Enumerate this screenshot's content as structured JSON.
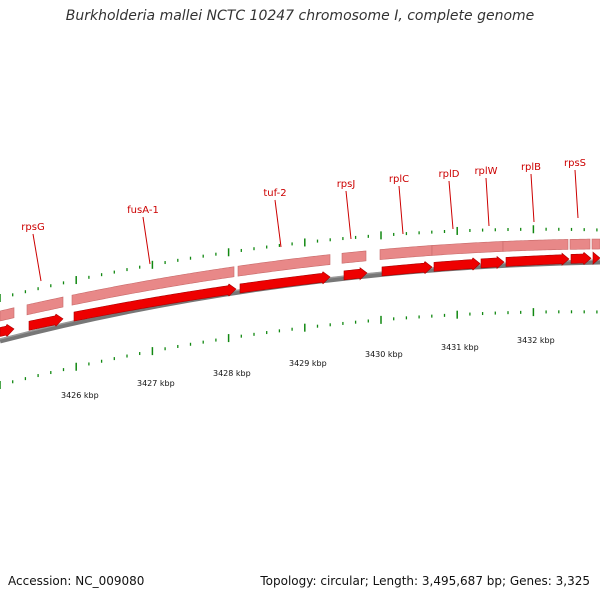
{
  "title": "Burkholderia mallei NCTC 10247 chromosome I, complete genome",
  "footer": {
    "accession": "Accession: NC_009080",
    "summary": "Topology: circular; Length: 3,495,687 bp; Genes: 3,325"
  },
  "genes": [
    {
      "name": "rpsG"
    },
    {
      "name": "fusA-1"
    },
    {
      "name": "tuf-2"
    },
    {
      "name": "rpsJ"
    },
    {
      "name": "rplC"
    },
    {
      "name": "rplD"
    },
    {
      "name": "rplW"
    },
    {
      "name": "rplB"
    },
    {
      "name": "rpsS"
    }
  ],
  "scale_labels": [
    "3426 kbp",
    "3427 kbp",
    "3428 kbp",
    "3429 kbp",
    "3430 kbp",
    "3431 kbp",
    "3432 kbp"
  ],
  "colors": {
    "gene_arrow": "#ee0000",
    "gene_band": "#e88888",
    "backbone": "#777777",
    "tick": "#118811",
    "label": "#cc0000"
  }
}
